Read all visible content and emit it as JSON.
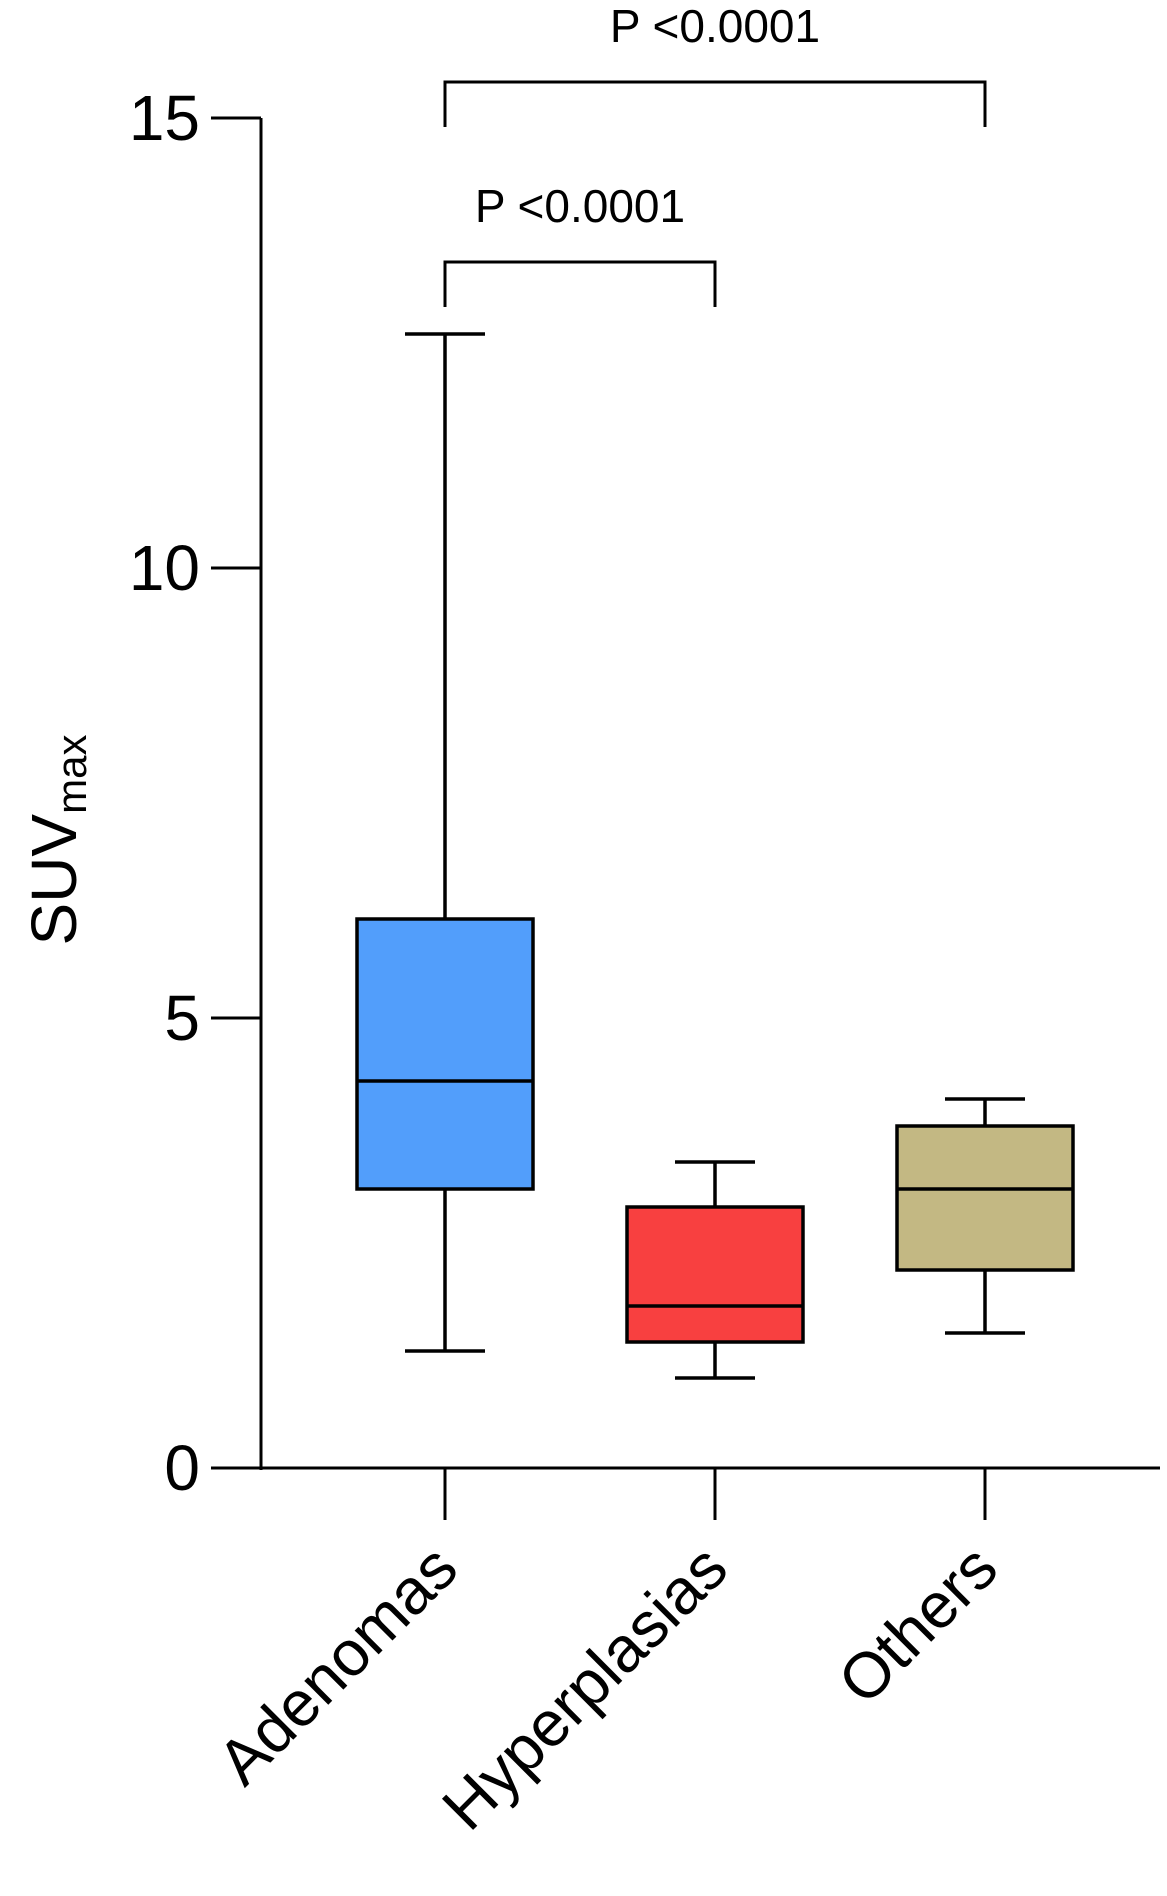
{
  "chart_data": {
    "type": "box",
    "ylabel": "SUV",
    "ylabel_subscript": "max",
    "ylim": [
      0,
      15
    ],
    "yticks": [
      0,
      5,
      10,
      15
    ],
    "categories": [
      "Adenomas",
      "Hyperplasias",
      "Others"
    ],
    "boxes": [
      {
        "name": "Adenomas",
        "min": 1.3,
        "q1": 3.1,
        "median": 4.3,
        "q3": 6.1,
        "max": 12.6,
        "color": "#529efb"
      },
      {
        "name": "Hyperplasias",
        "min": 1.0,
        "q1": 1.4,
        "median": 1.8,
        "q3": 2.9,
        "max": 3.4,
        "color": "#f84040"
      },
      {
        "name": "Others",
        "min": 1.5,
        "q1": 2.2,
        "median": 3.1,
        "q3": 3.8,
        "max": 4.1,
        "color": "#c3b883"
      }
    ],
    "comparisons": [
      {
        "from": "Adenomas",
        "to": "Hyperplasias",
        "label": "P <0.0001",
        "level": 13.4
      },
      {
        "from": "Adenomas",
        "to": "Others",
        "label": "P <0.0001",
        "level": 15.4
      }
    ]
  }
}
